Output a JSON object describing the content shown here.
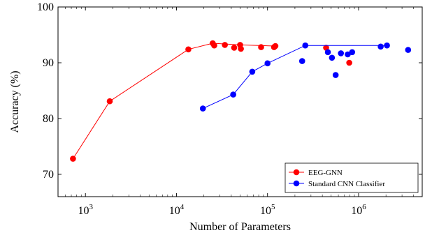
{
  "chart_data": {
    "type": "scatter",
    "title": "",
    "xlabel": "Number of Parameters",
    "ylabel": "Accuracy (%)",
    "xscale": "log",
    "xlim": [
      500,
      5000000
    ],
    "ylim": [
      66,
      100
    ],
    "x_ticks": [
      1000,
      10000,
      100000,
      1000000
    ],
    "x_tick_labels": [
      {
        "base": "10",
        "exp": "3"
      },
      {
        "base": "10",
        "exp": "4"
      },
      {
        "base": "10",
        "exp": "5"
      },
      {
        "base": "10",
        "exp": "6"
      }
    ],
    "y_ticks": [
      70,
      80,
      90,
      100
    ],
    "y_tick_labels": [
      "70",
      "80",
      "90",
      "100"
    ],
    "legend_position": "bottom-right",
    "series": [
      {
        "name": "EEG-GNN",
        "color": "#ff0000",
        "frontier": [
          [
            730,
            72.8
          ],
          [
            1850,
            83.1
          ],
          [
            13500,
            92.4
          ],
          [
            25000,
            93.5
          ],
          [
            50000,
            93.2
          ],
          [
            120000,
            93.0
          ]
        ],
        "points": [
          [
            730,
            72.8
          ],
          [
            1850,
            83.1
          ],
          [
            13500,
            92.4
          ],
          [
            25000,
            93.5
          ],
          [
            26000,
            93.1
          ],
          [
            34000,
            93.2
          ],
          [
            43000,
            92.7
          ],
          [
            50000,
            93.2
          ],
          [
            51000,
            92.5
          ],
          [
            85000,
            92.8
          ],
          [
            118000,
            92.8
          ],
          [
            122000,
            93.0
          ],
          [
            440000,
            92.7
          ],
          [
            790000,
            90.0
          ]
        ]
      },
      {
        "name": "Standard CNN Classifier",
        "color": "#0000ff",
        "frontier": [
          [
            19500,
            81.8
          ],
          [
            42000,
            84.3
          ],
          [
            68000,
            88.4
          ],
          [
            100000,
            89.9
          ],
          [
            260000,
            93.1
          ],
          [
            2000000,
            93.1
          ]
        ],
        "points": [
          [
            19500,
            81.8
          ],
          [
            42000,
            84.3
          ],
          [
            68000,
            88.4
          ],
          [
            100000,
            89.9
          ],
          [
            240000,
            90.3
          ],
          [
            260000,
            93.1
          ],
          [
            460000,
            91.9
          ],
          [
            510000,
            90.9
          ],
          [
            560000,
            87.8
          ],
          [
            640000,
            91.7
          ],
          [
            760000,
            91.5
          ],
          [
            850000,
            91.9
          ],
          [
            1750000,
            92.9
          ],
          [
            2050000,
            93.1
          ],
          [
            3500000,
            92.3
          ]
        ]
      }
    ]
  }
}
